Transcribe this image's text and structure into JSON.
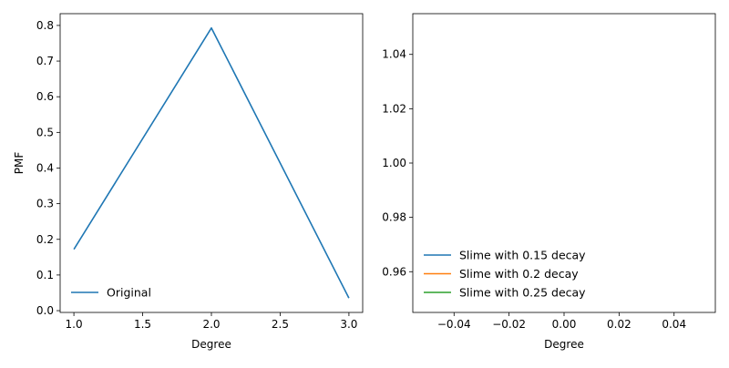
{
  "chart_data": [
    {
      "type": "line",
      "xlabel": "Degree",
      "ylabel": "PMF",
      "xlim": [
        0.9,
        3.1
      ],
      "ylim": [
        -0.005,
        0.833
      ],
      "x_ticks": [
        1.0,
        1.5,
        2.0,
        2.5,
        3.0
      ],
      "x_tick_labels": [
        "1.0",
        "1.5",
        "2.0",
        "2.5",
        "3.0"
      ],
      "y_ticks": [
        0.0,
        0.1,
        0.2,
        0.3,
        0.4,
        0.5,
        0.6,
        0.7,
        0.8
      ],
      "y_tick_labels": [
        "0.0",
        "0.1",
        "0.2",
        "0.3",
        "0.4",
        "0.5",
        "0.6",
        "0.7",
        "0.8"
      ],
      "grid": false,
      "legend_position": "lower-left",
      "series": [
        {
          "name": "Original",
          "color": "#1f77b4",
          "x": [
            1.0,
            2.0,
            3.0
          ],
          "y": [
            0.172,
            0.793,
            0.035
          ]
        }
      ]
    },
    {
      "type": "line",
      "xlabel": "Degree",
      "ylabel": "",
      "xlim": [
        -0.055,
        0.055
      ],
      "ylim": [
        0.945,
        1.055
      ],
      "x_ticks": [
        -0.04,
        -0.02,
        0.0,
        0.02,
        0.04
      ],
      "x_tick_labels": [
        "−0.04",
        "−0.02",
        "0.00",
        "0.02",
        "0.04"
      ],
      "y_ticks": [
        0.96,
        0.98,
        1.0,
        1.02,
        1.04
      ],
      "y_tick_labels": [
        "0.96",
        "0.98",
        "1.00",
        "1.02",
        "1.04"
      ],
      "grid": false,
      "legend_position": "lower-left",
      "series": [
        {
          "name": "Slime with 0.15 decay",
          "color": "#1f77b4",
          "x": [],
          "y": []
        },
        {
          "name": "Slime with 0.2 decay",
          "color": "#ff7f0e",
          "x": [],
          "y": []
        },
        {
          "name": "Slime with 0.25 decay",
          "color": "#2ca02c",
          "x": [],
          "y": []
        }
      ]
    }
  ]
}
